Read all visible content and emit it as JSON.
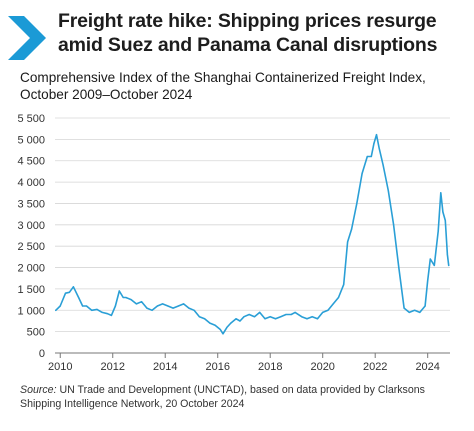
{
  "title": "Freight rate hike: Shipping prices resurge amid Suez and Panama Canal disruptions",
  "subtitle": "Comprehensive Index of the Shanghai Containerized Freight Index, October 2009–October 2024",
  "source": {
    "label": "Source:",
    "text": " UN Trade and Development (UNCTAD), based on data provided by Clarksons Shipping Intelligence Network, 20 October 2024"
  },
  "colors": {
    "accent": "#1b9ad6",
    "line": "#2a9fd6",
    "grid": "#d6d6d6",
    "axis": "#777777",
    "text": "#1a1a1a"
  },
  "chart_data": {
    "type": "line",
    "series": [
      {
        "x": [
          2009.83,
          2010.0,
          2010.2,
          2010.35,
          2010.5,
          2010.7,
          2010.85,
          2011.0,
          2011.2,
          2011.4,
          2011.6,
          2011.8,
          2011.95,
          2012.1,
          2012.25,
          2012.4,
          2012.5,
          2012.7,
          2012.9,
          2013.1,
          2013.3,
          2013.5,
          2013.7,
          2013.9,
          2014.1,
          2014.3,
          2014.5,
          2014.7,
          2014.9,
          2015.1,
          2015.3,
          2015.5,
          2015.7,
          2015.9,
          2016.1,
          2016.2,
          2016.35,
          2016.5,
          2016.7,
          2016.85,
          2017.0,
          2017.2,
          2017.4,
          2017.6,
          2017.8,
          2018.0,
          2018.2,
          2018.4,
          2018.6,
          2018.8,
          2018.95,
          2019.2,
          2019.4,
          2019.6,
          2019.8,
          2020.0,
          2020.2,
          2020.4,
          2020.6,
          2020.8,
          2020.95,
          2021.1,
          2021.3,
          2021.5,
          2021.7,
          2021.85,
          2021.95,
          2022.05,
          2022.15,
          2022.3,
          2022.5,
          2022.7,
          2022.9,
          2023.1,
          2023.3,
          2023.5,
          2023.7,
          2023.9,
          2024.0,
          2024.1,
          2024.25,
          2024.4,
          2024.5,
          2024.58,
          2024.67,
          2024.75,
          2024.8
        ],
        "y": [
          1000,
          1100,
          1400,
          1420,
          1550,
          1300,
          1100,
          1100,
          1000,
          1020,
          950,
          920,
          880,
          1100,
          1450,
          1300,
          1300,
          1250,
          1150,
          1200,
          1050,
          1000,
          1100,
          1150,
          1100,
          1050,
          1100,
          1150,
          1050,
          1000,
          850,
          800,
          700,
          650,
          550,
          450,
          600,
          700,
          800,
          750,
          850,
          900,
          850,
          950,
          800,
          850,
          800,
          850,
          900,
          900,
          950,
          850,
          800,
          850,
          800,
          950,
          1000,
          1150,
          1300,
          1600,
          2600,
          2900,
          3500,
          4200,
          4600,
          4600,
          4900,
          5110,
          4800,
          4400,
          3800,
          3000,
          2000,
          1050,
          950,
          1000,
          950,
          1100,
          1700,
          2200,
          2050,
          2850,
          3750,
          3300,
          3100,
          2300,
          2050
        ]
      }
    ],
    "xticks": [
      "2010",
      "2012",
      "2014",
      "2016",
      "2018",
      "2020",
      "2022",
      "2024"
    ],
    "yticks": [
      "0",
      "500",
      "1 000",
      "1 500",
      "2 000",
      "2 500",
      "3 000",
      "3 500",
      "4 000",
      "4 500",
      "5 000",
      "5 500"
    ],
    "xlim": [
      2009.8,
      2024.85
    ],
    "ylim": [
      0,
      5500
    ],
    "grid": "horizontal",
    "legend": "none"
  }
}
